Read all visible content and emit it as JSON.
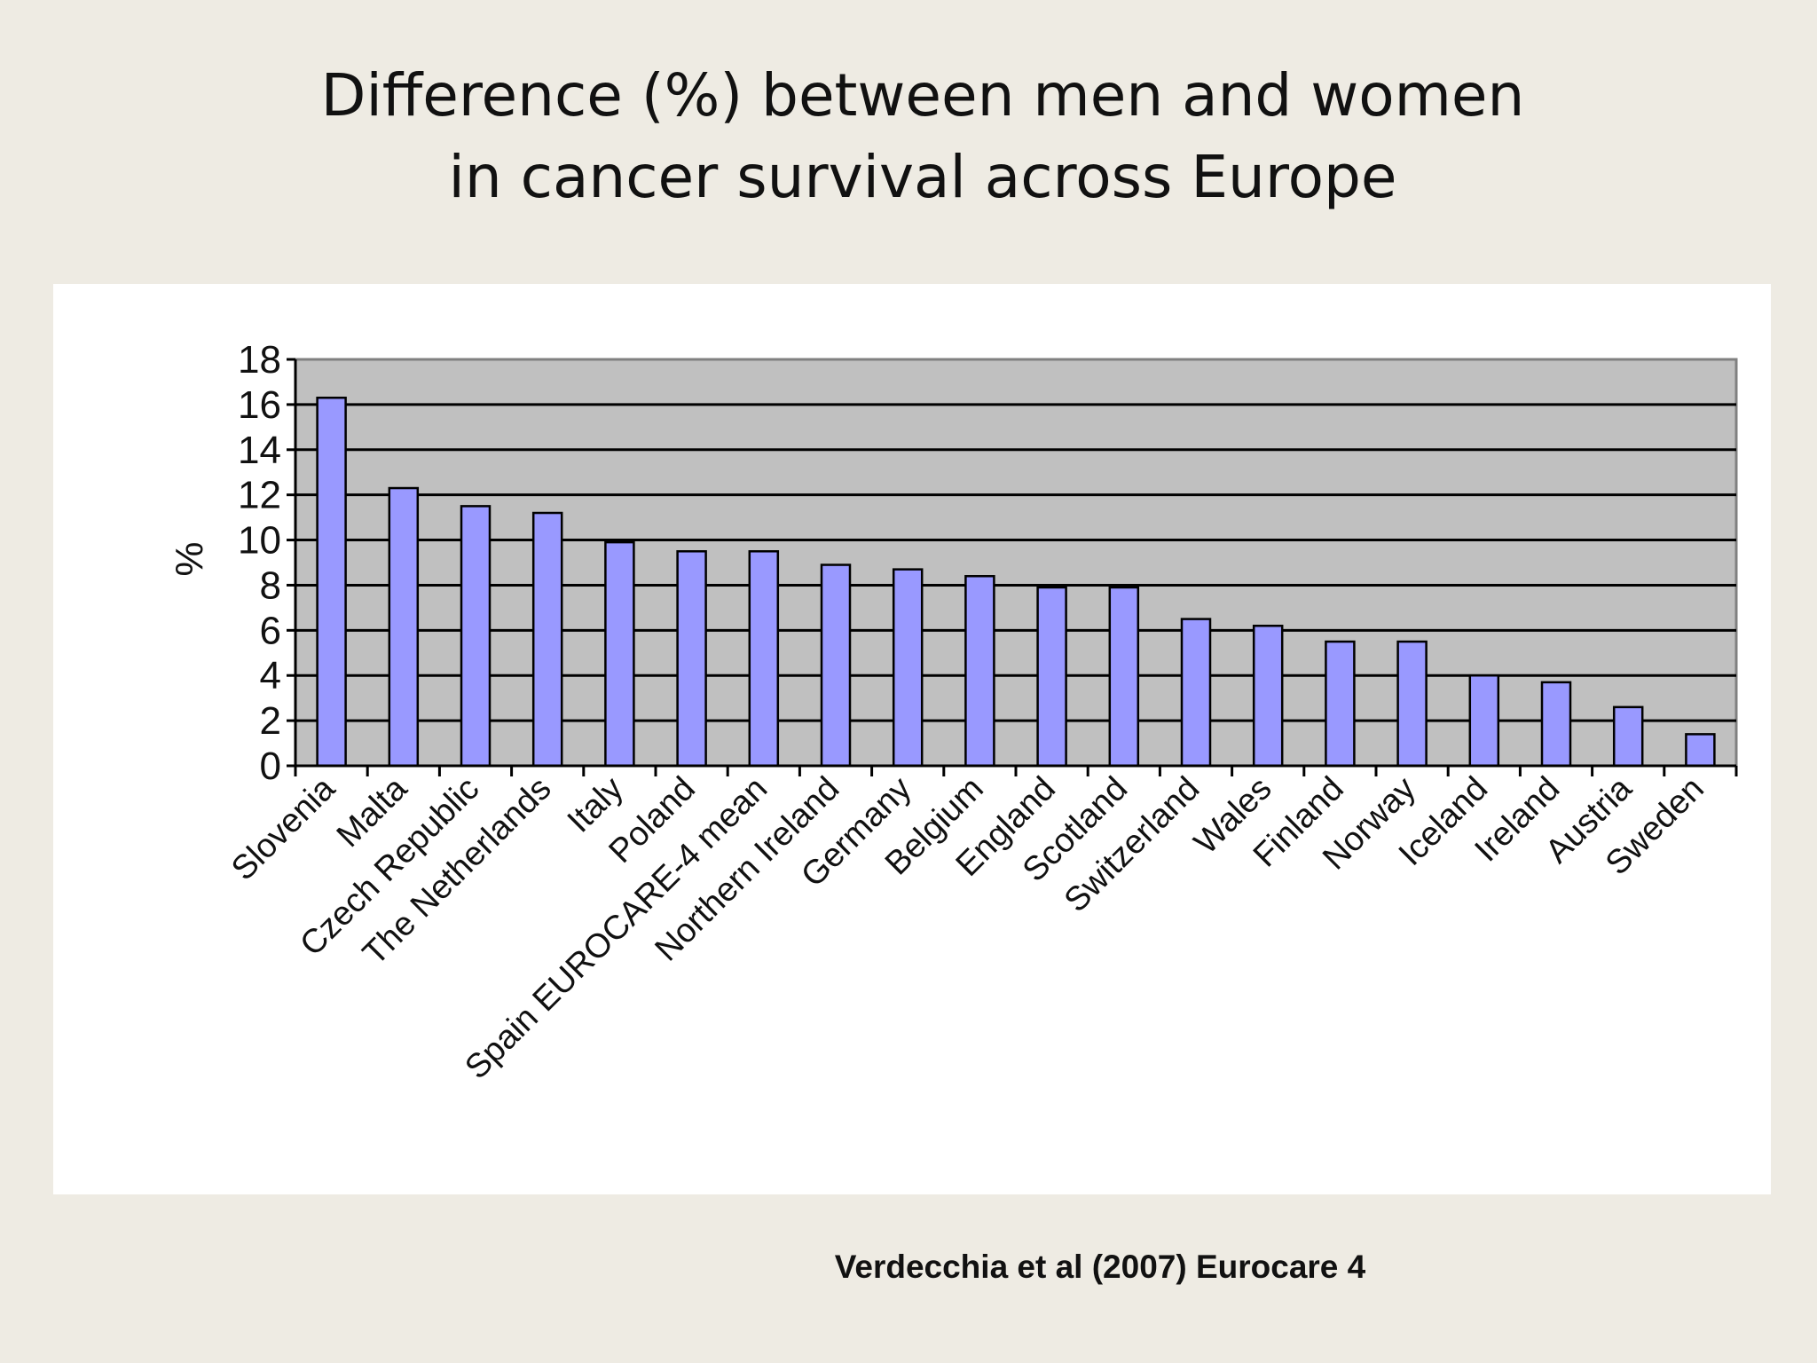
{
  "slide": {
    "title_line1": "Difference (%) between men and women",
    "title_line2": "in cancer survival across Europe",
    "citation": "Verdecchia et al (2007) Eurocare 4"
  },
  "chart_data": {
    "type": "bar",
    "title": "",
    "xlabel": "",
    "ylabel": "%",
    "ylim": [
      0,
      18
    ],
    "yticks": [
      0,
      2,
      4,
      6,
      8,
      10,
      12,
      14,
      16,
      18
    ],
    "grid": true,
    "legend": "none",
    "colors": {
      "bar": "#9999ff",
      "plot_bg": "#c0c0c0",
      "gridline": "#000000"
    },
    "categories": [
      "Slovenia",
      "Malta",
      "Czech Republic",
      "The Netherlands",
      "Italy",
      "Poland",
      "Spain EUROCARE-4 mean",
      "Northern Ireland",
      "Germany",
      "Belgium",
      "England",
      "Scotland",
      "Switzerland",
      "Wales",
      "Finland",
      "Norway",
      "Iceland",
      "Ireland",
      "Austria",
      "Sweden"
    ],
    "bar_count": 20,
    "values": [
      16.3,
      12.3,
      11.5,
      11.2,
      9.9,
      9.5,
      9.5,
      8.9,
      8.7,
      8.4,
      7.9,
      7.9,
      6.5,
      6.2,
      5.5,
      5.5,
      4.0,
      3.7,
      2.6,
      1.4
    ]
  }
}
